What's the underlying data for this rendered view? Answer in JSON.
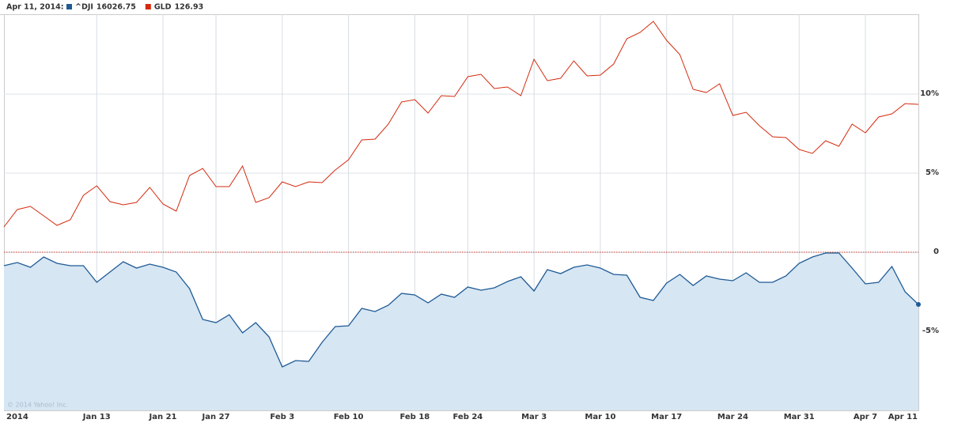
{
  "chart_data": {
    "type": "line",
    "date_label": "Apr 11, 2014:",
    "copyright": "© 2014 Yahoo! Inc.",
    "categories": [
      "2014",
      null,
      null,
      null,
      null,
      null,
      null,
      "Jan 13",
      null,
      null,
      null,
      null,
      "Jan 21",
      null,
      null,
      null,
      "Jan 27",
      null,
      null,
      null,
      null,
      "Feb 3",
      null,
      null,
      null,
      null,
      "Feb 10",
      null,
      null,
      null,
      null,
      "Feb 18",
      null,
      null,
      null,
      "Feb 24",
      null,
      null,
      null,
      null,
      "Mar 3",
      null,
      null,
      null,
      null,
      "Mar 10",
      null,
      null,
      null,
      null,
      "Mar 17",
      null,
      null,
      null,
      null,
      "Mar 24",
      null,
      null,
      null,
      null,
      "Mar 31",
      null,
      null,
      null,
      null,
      "Apr 7",
      null,
      null,
      null,
      "Apr 11"
    ],
    "series": [
      {
        "name": "^DJI",
        "last_value": 16026.75,
        "color": "#1f5a96",
        "fill": "#d6e6f2",
        "values": [
          -0.85,
          -0.65,
          -0.95,
          -0.3,
          -0.7,
          -0.85,
          -0.85,
          -1.9,
          -1.25,
          -0.6,
          -1.0,
          -0.75,
          -0.95,
          -1.25,
          -2.3,
          -4.25,
          -4.45,
          -3.95,
          -5.1,
          -4.45,
          -5.35,
          -7.25,
          -6.85,
          -6.9,
          -5.7,
          -4.7,
          -4.65,
          -3.55,
          -3.75,
          -3.35,
          -2.6,
          -2.7,
          -3.2,
          -2.65,
          -2.85,
          -2.2,
          -2.4,
          -2.25,
          -1.85,
          -1.55,
          -2.45,
          -1.1,
          -1.35,
          -0.95,
          -0.8,
          -1.0,
          -1.4,
          -1.45,
          -2.85,
          -3.05,
          -1.95,
          -1.4,
          -2.1,
          -1.5,
          -1.7,
          -1.8,
          -1.3,
          -1.9,
          -1.9,
          -1.5,
          -0.7,
          -0.3,
          -0.05,
          -0.05,
          -1.0,
          -2.0,
          -1.9,
          -0.9,
          -2.5,
          -3.3
        ]
      },
      {
        "name": "GLD",
        "last_value": 126.93,
        "color": "#d42a0e",
        "values": [
          1.6,
          2.7,
          2.9,
          2.3,
          1.7,
          2.05,
          3.6,
          4.2,
          3.2,
          3.0,
          3.15,
          4.1,
          3.05,
          2.6,
          4.85,
          5.3,
          4.15,
          4.15,
          5.45,
          3.15,
          3.45,
          4.45,
          4.15,
          4.45,
          4.4,
          5.2,
          5.85,
          7.1,
          7.15,
          8.1,
          9.5,
          9.65,
          8.8,
          9.9,
          9.85,
          11.1,
          11.25,
          10.35,
          10.45,
          9.9,
          12.2,
          10.85,
          11.0,
          12.1,
          11.15,
          11.2,
          11.9,
          13.5,
          13.9,
          14.6,
          13.4,
          12.5,
          10.3,
          10.1,
          10.65,
          8.65,
          8.85,
          8.0,
          7.3,
          7.25,
          6.5,
          6.25,
          7.05,
          6.7,
          8.1,
          7.55,
          8.55,
          8.75,
          9.4,
          9.35
        ]
      }
    ],
    "ylim": [
      -10,
      15.05
    ],
    "yticks": [
      {
        "value": -5,
        "label": "-5%"
      },
      0,
      {
        "value": 5,
        "label": "5%"
      },
      {
        "value": 10,
        "label": "10%"
      }
    ],
    "grid": true,
    "zero_line": true
  }
}
